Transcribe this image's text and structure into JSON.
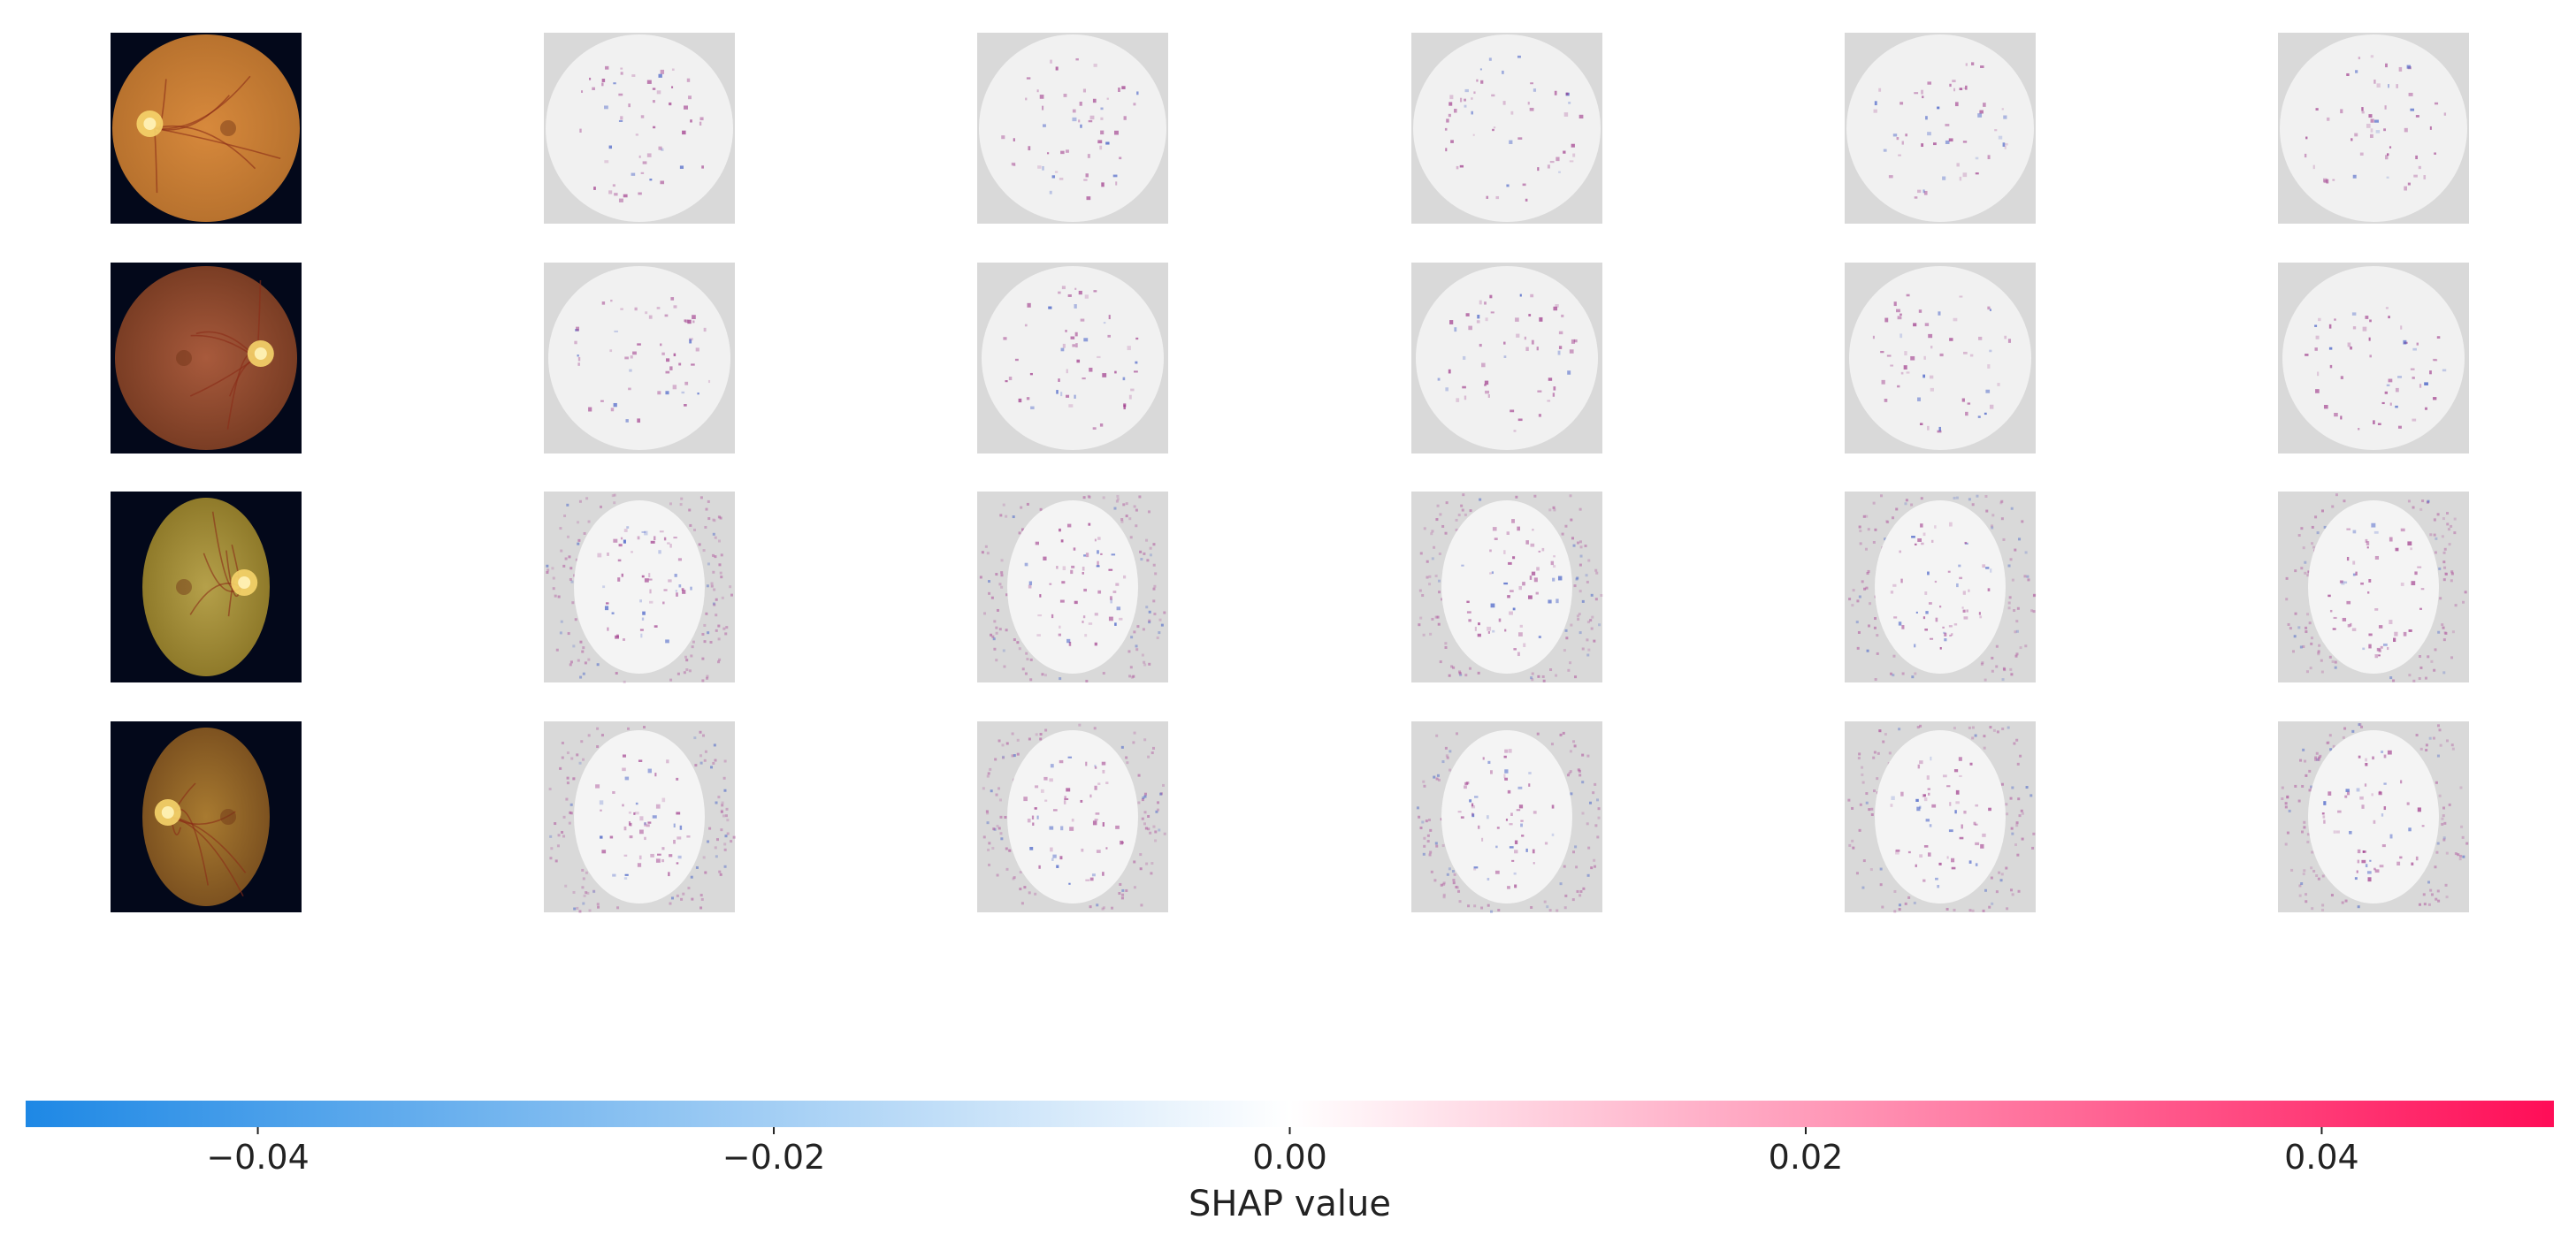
{
  "chart_data": {
    "type": "heatmap",
    "kind": "SHAP image explanation grid",
    "rows": 4,
    "columns": [
      {
        "content": "original fundus image"
      },
      {
        "content": "SHAP attribution map"
      },
      {
        "content": "SHAP attribution map"
      },
      {
        "content": "SHAP attribution map"
      },
      {
        "content": "SHAP attribution map"
      },
      {
        "content": "SHAP attribution map"
      }
    ],
    "fundus_images": [
      {
        "style": "full-circle",
        "rim": "#b8722e",
        "center": "#d7893c",
        "disc_side": "left"
      },
      {
        "style": "wide-oval",
        "rim": "#7a3d24",
        "center": "#a85a3c",
        "disc_side": "right"
      },
      {
        "style": "narrow-oval",
        "rim": "#8f7a2a",
        "center": "#b5a04a",
        "disc_side": "right"
      },
      {
        "style": "narrow-oval",
        "rim": "#7d5220",
        "center": "#a87a30",
        "disc_side": "left"
      }
    ],
    "colorbar": {
      "label": "SHAP value",
      "range": [
        -0.049,
        0.049
      ],
      "ticks": [
        -0.04,
        -0.02,
        0.0,
        0.02,
        0.04
      ],
      "tick_labels": [
        "−0.04",
        "−0.02",
        "0.00",
        "0.02",
        "0.04"
      ],
      "colors": {
        "negative": "#1e88e5",
        "zero": "#ffffff",
        "positive": "#ff0d57"
      }
    },
    "background_color": "#d9d9d9",
    "grid": false
  }
}
